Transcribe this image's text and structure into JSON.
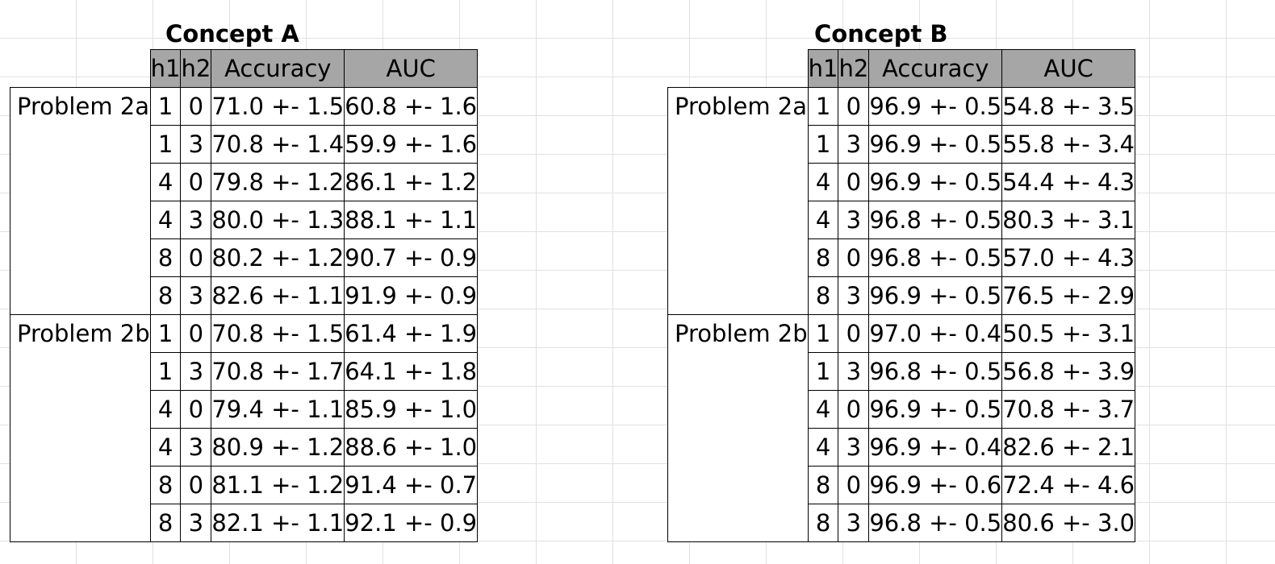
{
  "tables": [
    {
      "title": "Concept A",
      "columns": [
        "h1",
        "h2",
        "Accuracy",
        "AUC"
      ],
      "groups": [
        {
          "label": "Problem 2a",
          "rows": [
            [
              "1",
              "0",
              "71.0 +- 1.5",
              "60.8 +- 1.6"
            ],
            [
              "1",
              "3",
              "70.8 +- 1.4",
              "59.9 +- 1.6"
            ],
            [
              "4",
              "0",
              "79.8 +- 1.2",
              "86.1 +- 1.2"
            ],
            [
              "4",
              "3",
              "80.0 +- 1.3",
              "88.1 +- 1.1"
            ],
            [
              "8",
              "0",
              "80.2 +- 1.2",
              "90.7 +- 0.9"
            ],
            [
              "8",
              "3",
              "82.6 +- 1.1",
              "91.9 +- 0.9"
            ]
          ]
        },
        {
          "label": "Problem 2b",
          "rows": [
            [
              "1",
              "0",
              "70.8 +- 1.5",
              "61.4 +- 1.9"
            ],
            [
              "1",
              "3",
              "70.8 +- 1.7",
              "64.1 +- 1.8"
            ],
            [
              "4",
              "0",
              "79.4 +- 1.1",
              "85.9 +- 1.0"
            ],
            [
              "4",
              "3",
              "80.9 +- 1.2",
              "88.6 +- 1.0"
            ],
            [
              "8",
              "0",
              "81.1 +- 1.2",
              "91.4 +- 0.7"
            ],
            [
              "8",
              "3",
              "82.1 +- 1.1",
              "92.1 +- 0.9"
            ]
          ]
        }
      ]
    },
    {
      "title": "Concept B",
      "columns": [
        "h1",
        "h2",
        "Accuracy",
        "AUC"
      ],
      "groups": [
        {
          "label": "Problem 2a",
          "rows": [
            [
              "1",
              "0",
              "96.9 +- 0.5",
              "54.8 +- 3.5"
            ],
            [
              "1",
              "3",
              "96.9 +- 0.5",
              "55.8 +- 3.4"
            ],
            [
              "4",
              "0",
              "96.9 +- 0.5",
              "54.4 +- 4.3"
            ],
            [
              "4",
              "3",
              "96.8 +- 0.5",
              "80.3 +- 3.1"
            ],
            [
              "8",
              "0",
              "96.8 +- 0.5",
              "57.0 +- 4.3"
            ],
            [
              "8",
              "3",
              "96.9 +- 0.5",
              "76.5 +- 2.9"
            ]
          ]
        },
        {
          "label": "Problem 2b",
          "rows": [
            [
              "1",
              "0",
              "97.0 +- 0.4",
              "50.5 +- 3.1"
            ],
            [
              "1",
              "3",
              "96.8 +- 0.5",
              "56.8 +- 3.9"
            ],
            [
              "4",
              "0",
              "96.9 +- 0.5",
              "70.8 +- 3.7"
            ],
            [
              "4",
              "3",
              "96.9 +- 0.4",
              "82.6 +- 2.1"
            ],
            [
              "8",
              "0",
              "96.9 +- 0.6",
              "72.4 +- 4.6"
            ],
            [
              "8",
              "3",
              "96.8 +- 0.5",
              "80.6 +- 3.0"
            ]
          ]
        }
      ]
    }
  ],
  "colors": {
    "header_fill": "#a6a6a6",
    "gridline": "#e1e1e1",
    "border": "#000000"
  }
}
